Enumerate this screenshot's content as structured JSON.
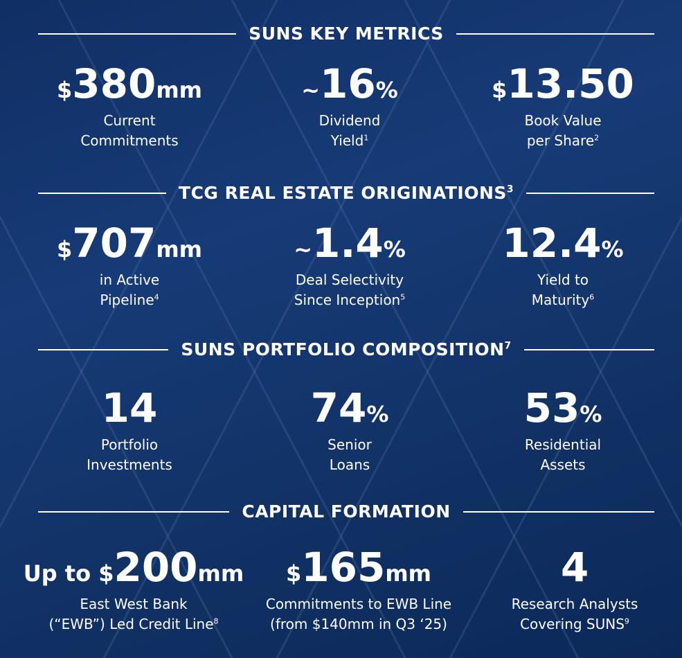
{
  "sections": [
    {
      "title": "SUNS KEY METRICS",
      "metrics": [
        {
          "prefix": "$",
          "value": "380",
          "unit": "mm",
          "label": [
            "Current",
            "Commitments"
          ]
        },
        {
          "prefix": "~",
          "value": "16",
          "unit": "%",
          "label": [
            "Dividend",
            "Yield"
          ],
          "note": "1"
        },
        {
          "prefix": "$",
          "value": "13.50",
          "label": [
            "Book Value",
            "per Share"
          ],
          "note": "2"
        }
      ]
    },
    {
      "title": "TCG REAL ESTATE ORIGINATIONS",
      "note": "3",
      "metrics": [
        {
          "prefix": "$",
          "value": "707",
          "unit": "mm",
          "label": [
            "in Active",
            "Pipeline"
          ],
          "note": "4"
        },
        {
          "prefix": "~",
          "value": "1.4",
          "unit": "%",
          "label": [
            "Deal Selectivity",
            "Since Inception"
          ],
          "note": "5"
        },
        {
          "value": "12.4",
          "unit": "%",
          "label": [
            "Yield to",
            "Maturity"
          ],
          "note": "6"
        }
      ]
    },
    {
      "title": "SUNS PORTFOLIO COMPOSITION",
      "note": "7",
      "metrics": [
        {
          "value": "14",
          "label": [
            "Portfolio",
            "Investments"
          ]
        },
        {
          "value": "74",
          "unit": "%",
          "label": [
            "Senior",
            "Loans"
          ]
        },
        {
          "value": "53",
          "unit": "%",
          "label": [
            "Residential",
            "Assets"
          ]
        }
      ]
    },
    {
      "title": "CAPITAL FORMATION",
      "metrics": [
        {
          "prefix": "Up to $",
          "value": "200",
          "unit": "mm",
          "label": [
            "East West Bank",
            "(“EWB”) Led Credit Line"
          ],
          "note": "8"
        },
        {
          "prefix": "$",
          "value": "165",
          "unit": "mm",
          "label": [
            "Commitments to EWB Line",
            "(from $140mm in Q3 ‘25)"
          ]
        },
        {
          "value": "4",
          "label": [
            "Research Analysts",
            "Covering SUNS"
          ],
          "note": "9"
        }
      ]
    }
  ]
}
